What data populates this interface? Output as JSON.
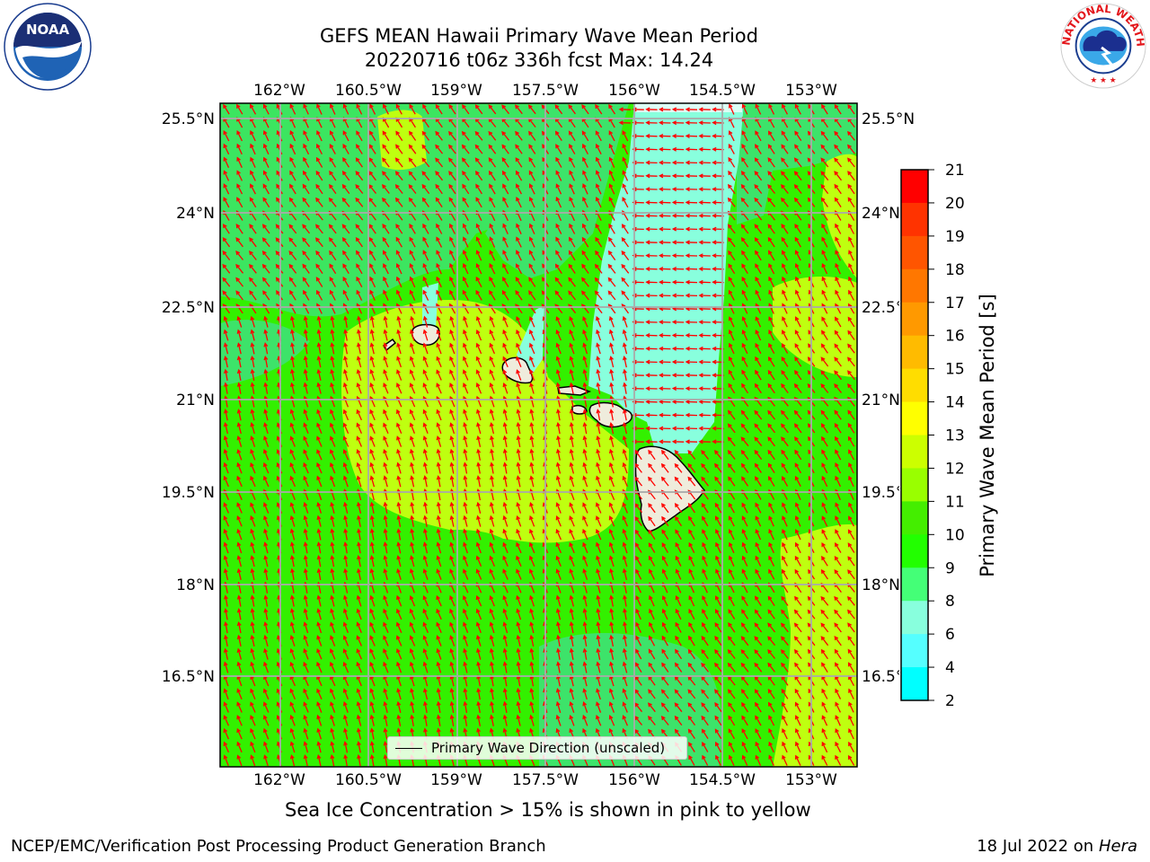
{
  "title": {
    "line1": "GEFS MEAN Hawaii Primary Wave Mean Period",
    "line2": "20220716 t06z 336h fcst   Max: 14.24"
  },
  "logos": {
    "left": {
      "icon": "noaa-logo",
      "text": "NOAA"
    },
    "right": {
      "icon": "nws-logo",
      "text": "NATIONAL WEATHER SERVICE"
    }
  },
  "map": {
    "lon_labels": [
      "162°W",
      "160.5°W",
      "159°W",
      "157.5°W",
      "156°W",
      "154.5°W",
      "153°W"
    ],
    "lat_labels": [
      "25.5°N",
      "24°N",
      "22.5°N",
      "21°N",
      "19.5°N",
      "18°N",
      "16.5°N"
    ],
    "legend_label": "Primary Wave Direction (unscaled)",
    "arrow_color": "#ff0000",
    "land_color": "#efecdc"
  },
  "colorbar": {
    "title": "Primary Wave Mean Period [s]",
    "ticks": [
      "21",
      "20",
      "19",
      "18",
      "17",
      "16",
      "15",
      "14",
      "13",
      "12",
      "11",
      "10",
      "9",
      "8",
      "6",
      "4",
      "2"
    ],
    "colors": [
      "#ff0000",
      "#ff3300",
      "#ff5500",
      "#ff7700",
      "#ff9900",
      "#ffbb00",
      "#ffdd00",
      "#ffff00",
      "#ccff00",
      "#99ff00",
      "#44ee00",
      "#22ff00",
      "#44ff77",
      "#88ffdd",
      "#55ffff",
      "#00ffff",
      "#0088ff",
      "#0044ff"
    ]
  },
  "note": "Sea Ice Concentration > 15% is shown in pink to yellow",
  "footer": {
    "left": "NCEP/EMC/Verification Post Processing Product Generation Branch",
    "right_date": "18 Jul 2022 on ",
    "right_host": "Hera"
  }
}
